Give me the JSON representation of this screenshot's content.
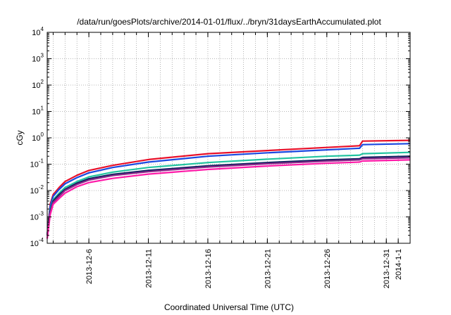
{
  "chart_data": {
    "type": "line",
    "title": "/data/run/goesPlots/archive/2014-01-01/flux/../bryn/31daysEarthAccumulated.plot",
    "xlabel": "Coordinated Universal Time (UTC)",
    "ylabel": "cGy",
    "y_scale": "log",
    "ylim_exponents": [
      -4,
      4
    ],
    "y_ticks": [
      {
        "base": "10",
        "exp": "4",
        "value": 4
      },
      {
        "base": "10",
        "exp": "3",
        "value": 3
      },
      {
        "base": "10",
        "exp": "2",
        "value": 2
      },
      {
        "base": "10",
        "exp": "1",
        "value": 1
      },
      {
        "base": "10",
        "exp": "0",
        "value": 0
      },
      {
        "base": "10",
        "exp": "-1",
        "value": -1
      },
      {
        "base": "10",
        "exp": "-2",
        "value": -2
      },
      {
        "base": "10",
        "exp": "-3",
        "value": -3
      },
      {
        "base": "10",
        "exp": "-4",
        "value": -4
      }
    ],
    "xlim": [
      "2013-12-02T12:00",
      "2014-01-02T00:00"
    ],
    "x_ticks": [
      {
        "label": "2013-12-6",
        "date": "2013-12-06"
      },
      {
        "label": "2013-12-11",
        "date": "2013-12-11"
      },
      {
        "label": "2013-12-16",
        "date": "2013-12-16"
      },
      {
        "label": "2013-12-21",
        "date": "2013-12-21"
      },
      {
        "label": "2013-12-26",
        "date": "2013-12-26"
      },
      {
        "label": "2013-12-31",
        "date": "2013-12-31"
      },
      {
        "label": "2014-1-1",
        "date": "2014-01-01"
      }
    ],
    "grid": true,
    "series": [
      {
        "color": "#e8102a",
        "x": [
          "2013-12-02T12:00",
          "2013-12-02T18:00",
          "2013-12-03T00:00",
          "2013-12-03T12:00",
          "2013-12-04T00:00",
          "2013-12-05T00:00",
          "2013-12-06T00:00",
          "2013-12-08T00:00",
          "2013-12-11T00:00",
          "2013-12-16T00:00",
          "2013-12-21T00:00",
          "2013-12-26T00:00",
          "2013-12-28T18:00",
          "2013-12-29T00:00",
          "2014-01-02T00:00"
        ],
        "y": [
          0.0002,
          0.003,
          0.007,
          0.013,
          0.022,
          0.038,
          0.058,
          0.09,
          0.15,
          0.25,
          0.33,
          0.43,
          0.5,
          0.75,
          0.8
        ]
      },
      {
        "color": "#1a48e0",
        "x": [
          "2013-12-02T12:00",
          "2013-12-02T18:00",
          "2013-12-03T00:00",
          "2013-12-03T12:00",
          "2013-12-04T00:00",
          "2013-12-05T00:00",
          "2013-12-06T00:00",
          "2013-12-08T00:00",
          "2013-12-11T00:00",
          "2013-12-16T00:00",
          "2013-12-21T00:00",
          "2013-12-26T00:00",
          "2013-12-28T18:00",
          "2013-12-29T00:00",
          "2014-01-02T00:00"
        ],
        "y": [
          0.0002,
          0.0025,
          0.006,
          0.011,
          0.018,
          0.031,
          0.047,
          0.075,
          0.12,
          0.2,
          0.27,
          0.35,
          0.4,
          0.55,
          0.6
        ]
      },
      {
        "color": "#22c4a0",
        "x": [
          "2013-12-02T12:00",
          "2013-12-02T18:00",
          "2013-12-03T00:00",
          "2013-12-03T12:00",
          "2013-12-04T00:00",
          "2013-12-05T00:00",
          "2013-12-06T00:00",
          "2013-12-08T00:00",
          "2013-12-11T00:00",
          "2013-12-16T00:00",
          "2013-12-21T00:00",
          "2013-12-26T00:00",
          "2013-12-28T18:00",
          "2013-12-29T00:00",
          "2014-01-02T00:00"
        ],
        "y": [
          0.0002,
          0.0018,
          0.0045,
          0.008,
          0.013,
          0.022,
          0.033,
          0.05,
          0.075,
          0.115,
          0.155,
          0.2,
          0.22,
          0.25,
          0.28
        ]
      },
      {
        "color": "#102060",
        "x": [
          "2013-12-02T12:00",
          "2013-12-02T18:00",
          "2013-12-03T00:00",
          "2013-12-03T12:00",
          "2013-12-04T00:00",
          "2013-12-05T00:00",
          "2013-12-06T00:00",
          "2013-12-08T00:00",
          "2013-12-11T00:00",
          "2013-12-16T00:00",
          "2013-12-21T00:00",
          "2013-12-26T00:00",
          "2013-12-28T18:00",
          "2013-12-29T00:00",
          "2014-01-02T00:00"
        ],
        "y": [
          0.0002,
          0.0016,
          0.004,
          0.007,
          0.011,
          0.019,
          0.028,
          0.041,
          0.058,
          0.087,
          0.115,
          0.145,
          0.16,
          0.18,
          0.2
        ]
      },
      {
        "color": "#8a2a8a",
        "x": [
          "2013-12-02T12:00",
          "2013-12-02T18:00",
          "2013-12-03T00:00",
          "2013-12-03T12:00",
          "2013-12-04T00:00",
          "2013-12-05T00:00",
          "2013-12-06T00:00",
          "2013-12-08T00:00",
          "2013-12-11T00:00",
          "2013-12-16T00:00",
          "2013-12-21T00:00",
          "2013-12-26T00:00",
          "2013-12-28T18:00",
          "2013-12-29T00:00",
          "2014-01-02T00:00"
        ],
        "y": [
          0.0002,
          0.0014,
          0.0035,
          0.006,
          0.01,
          0.017,
          0.025,
          0.037,
          0.052,
          0.078,
          0.104,
          0.13,
          0.145,
          0.16,
          0.175
        ]
      },
      {
        "color": "#ff1aa8",
        "x": [
          "2013-12-02T12:00",
          "2013-12-02T18:00",
          "2013-12-03T00:00",
          "2013-12-03T12:00",
          "2013-12-04T00:00",
          "2013-12-05T00:00",
          "2013-12-06T00:00",
          "2013-12-08T00:00",
          "2013-12-11T00:00",
          "2013-12-16T00:00",
          "2013-12-21T00:00",
          "2013-12-26T00:00",
          "2013-12-28T18:00",
          "2013-12-29T00:00",
          "2014-01-02T00:00"
        ],
        "y": [
          0.00015,
          0.0012,
          0.003,
          0.005,
          0.008,
          0.014,
          0.02,
          0.029,
          0.042,
          0.063,
          0.085,
          0.108,
          0.12,
          0.132,
          0.145
        ]
      }
    ]
  }
}
